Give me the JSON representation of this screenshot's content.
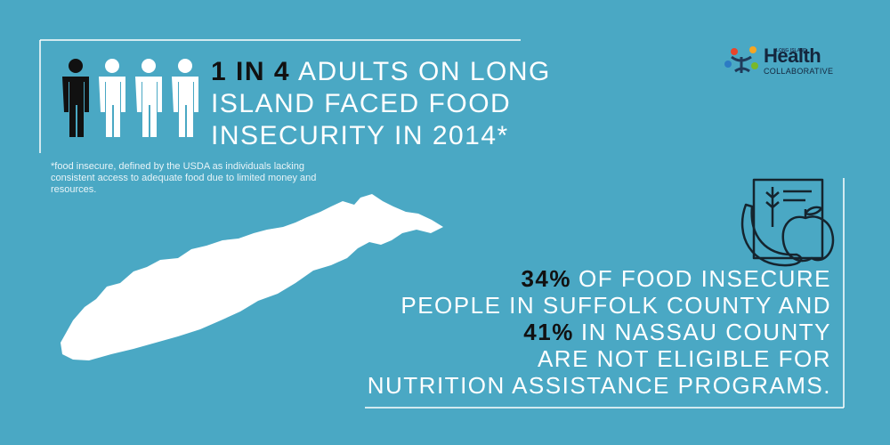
{
  "headline": {
    "highlight": "1 IN 4",
    "lines": [
      "ADULTS ON LONG",
      "ISLAND FACED FOOD",
      "INSECURITY IN 2014*"
    ]
  },
  "footnote": "*food insecure, defined by the USDA as individuals lacking consistent access to adequate food due to limited money and resources.",
  "logo": {
    "region": "LONG ISLAND",
    "name": "Health",
    "subtitle": "COLLABORATIVE"
  },
  "statement": {
    "suffolk_highlight": "34%",
    "line1": "OF FOOD INSECURE",
    "line2": "PEOPLE IN SUFFOLK COUNTY AND",
    "nassau_highlight": "41%",
    "line3": "IN NASSAU COUNTY",
    "line4": "ARE NOT ELIGIBLE FOR",
    "line5": "NUTRITION ASSISTANCE PROGRAMS."
  }
}
